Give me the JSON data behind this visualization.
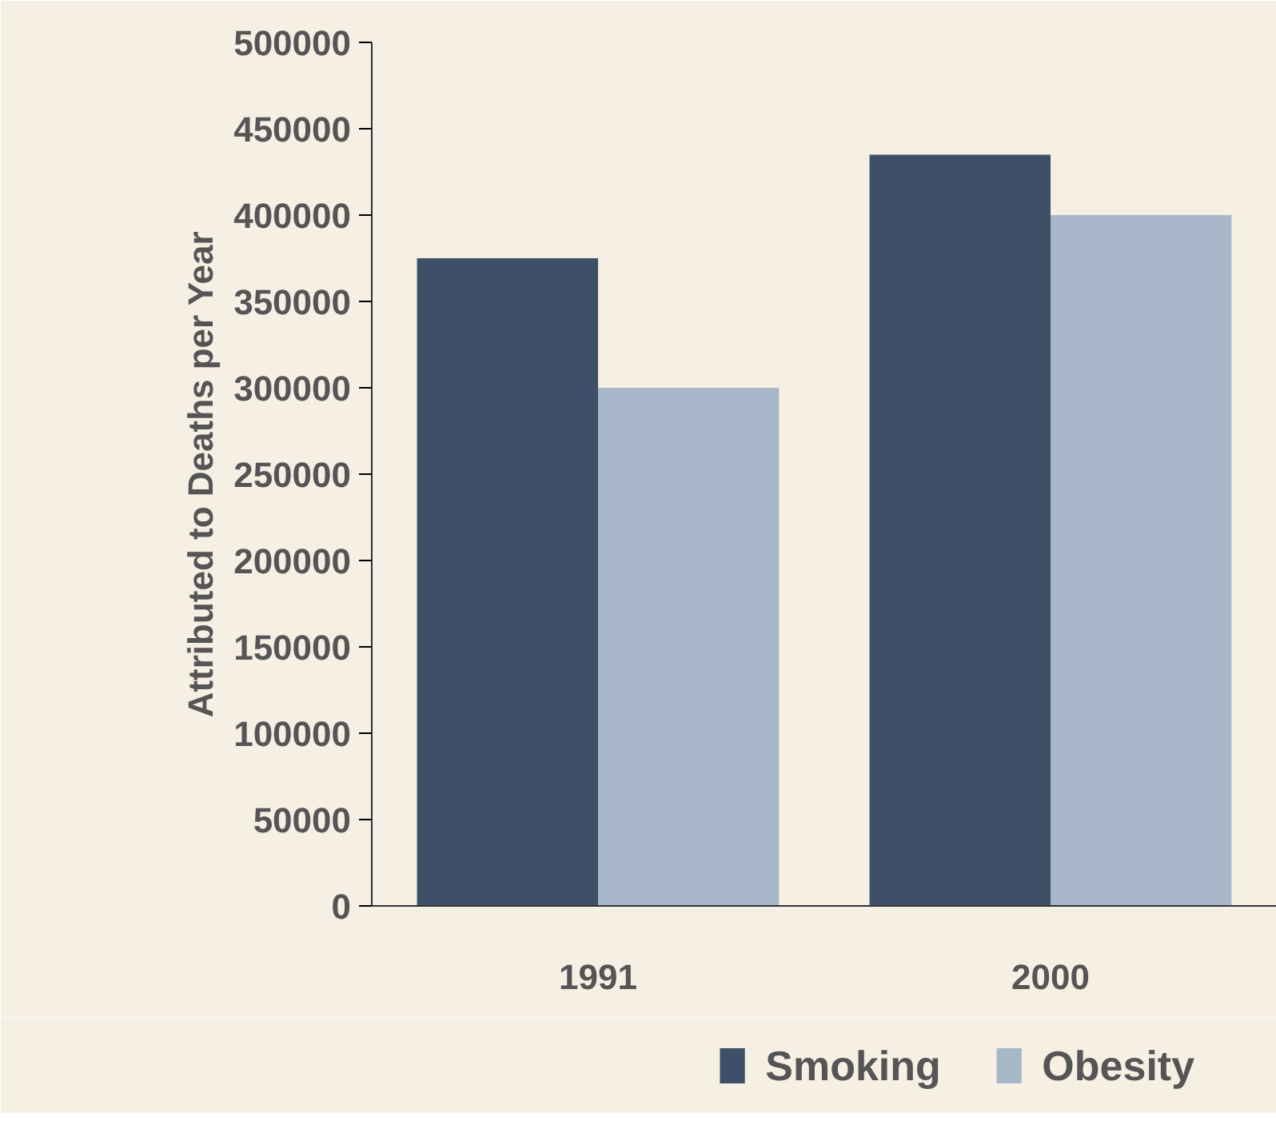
{
  "chart_data": {
    "type": "bar",
    "ylabel": "Attributed to Deaths per Year",
    "categories": [
      "1991",
      "2000"
    ],
    "series": [
      {
        "name": "Smoking",
        "color": "#3d5068",
        "values": [
          375000,
          435000
        ]
      },
      {
        "name": "Obesity",
        "color": "#a9b7ca",
        "values": [
          300000,
          400000
        ]
      }
    ],
    "ylim": [
      0,
      500000
    ],
    "yticks": [
      0,
      50000,
      100000,
      150000,
      200000,
      250000,
      300000,
      350000,
      400000,
      450000,
      500000
    ],
    "grid": false,
    "legend": "bottom"
  }
}
